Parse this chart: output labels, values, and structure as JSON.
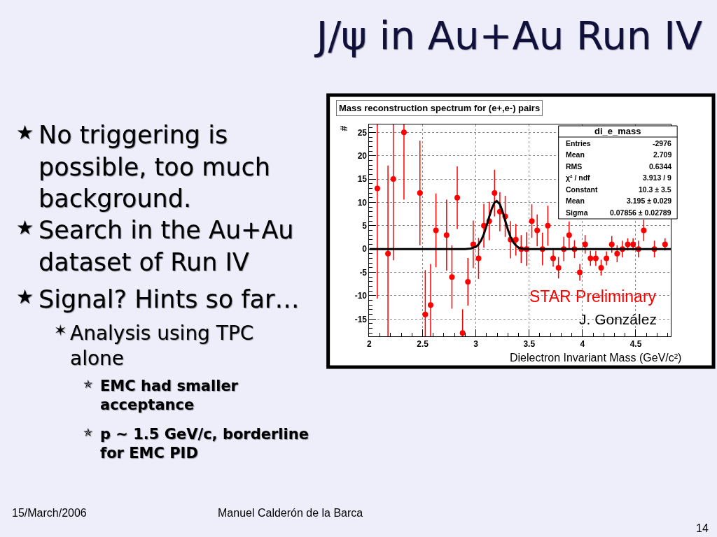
{
  "chart_data": {
    "type": "scatter",
    "title": "J/ψ in Au+Au Run IV",
    "subtitle": "Mass reconstruction spectrum for (e+,e-) pairs",
    "xlabel": "Dielectron Invariant Mass (GeV/c²)",
    "ylabel": "#",
    "xlim": [
      2,
      4.83
    ],
    "ylim": [
      -18.7,
      26.7
    ],
    "grid": true,
    "xticks": [
      2,
      {
        "value": 2.1,
        "label": null
      },
      {
        "value": 2.2,
        "label": null
      },
      {
        "value": 2.3,
        "label": null
      },
      {
        "value": 2.4,
        "label": null
      },
      2.5,
      {
        "value": 2.6,
        "label": null
      },
      {
        "value": 2.7,
        "label": null
      },
      {
        "value": 2.8,
        "label": null
      },
      {
        "value": 2.9,
        "label": null
      },
      3,
      {
        "value": 3.1,
        "label": null
      },
      {
        "value": 3.2,
        "label": null
      },
      {
        "value": 3.3,
        "label": null
      },
      {
        "value": 3.4,
        "label": null
      },
      3.5,
      {
        "value": 3.6,
        "label": null
      },
      {
        "value": 3.7,
        "label": null
      },
      {
        "value": 3.8,
        "label": null
      },
      {
        "value": 3.9,
        "label": null
      },
      4,
      {
        "value": 4.1,
        "label": null
      },
      {
        "value": 4.2,
        "label": null
      },
      {
        "value": 4.3,
        "label": null
      },
      {
        "value": 4.4,
        "label": null
      },
      4.5,
      {
        "value": 4.6,
        "label": null
      },
      {
        "value": 4.7,
        "label": null
      },
      {
        "value": 4.8,
        "label": null
      }
    ],
    "yticks": [
      {
        "value": -18,
        "label": null
      },
      {
        "value": -17,
        "label": null
      },
      {
        "value": -16,
        "label": null
      },
      -15,
      {
        "value": -14,
        "label": null
      },
      {
        "value": -13,
        "label": null
      },
      {
        "value": -12,
        "label": null
      },
      {
        "value": -11,
        "label": null
      },
      -10,
      {
        "value": -9,
        "label": null
      },
      {
        "value": -8,
        "label": null
      },
      {
        "value": -7,
        "label": null
      },
      {
        "value": -6,
        "label": null
      },
      -5,
      {
        "value": -4,
        "label": null
      },
      {
        "value": -3,
        "label": null
      },
      {
        "value": -2,
        "label": null
      },
      {
        "value": -1,
        "label": null
      },
      0,
      {
        "value": 1,
        "label": null
      },
      {
        "value": 2,
        "label": null
      },
      {
        "value": 3,
        "label": null
      },
      {
        "value": 4,
        "label": null
      },
      5,
      {
        "value": 6,
        "label": null
      },
      {
        "value": 7,
        "label": null
      },
      {
        "value": 8,
        "label": null
      },
      {
        "value": 9,
        "label": null
      },
      10,
      {
        "value": 11,
        "label": null
      },
      {
        "value": 12,
        "label": null
      },
      {
        "value": 13,
        "label": null
      },
      {
        "value": 14,
        "label": null
      },
      15,
      {
        "value": 16,
        "label": null
      },
      {
        "value": 17,
        "label": null
      },
      {
        "value": 18,
        "label": null
      },
      {
        "value": 19,
        "label": null
      },
      20,
      {
        "value": 21,
        "label": null
      },
      {
        "value": 22,
        "label": null
      },
      {
        "value": 23,
        "label": null
      },
      {
        "value": 24,
        "label": null
      },
      25,
      {
        "value": 26,
        "label": null
      }
    ],
    "series": [
      {
        "color": "#ff0000",
        "marker": "circle",
        "x": [
          2.075,
          2.175,
          2.225,
          2.325,
          2.475,
          2.525,
          2.575,
          2.625,
          2.725,
          2.775,
          2.825,
          2.875,
          2.925,
          2.975,
          3.025,
          3.075,
          3.125,
          3.175,
          3.225,
          3.275,
          3.325,
          3.375,
          3.425,
          3.475,
          3.525,
          3.575,
          3.625,
          3.675,
          3.725,
          3.775,
          3.825,
          3.875,
          3.925,
          3.975,
          4.025,
          4.075,
          4.125,
          4.175,
          4.225,
          4.275,
          4.325,
          4.375,
          4.425,
          4.475,
          4.525,
          4.575,
          4.675,
          4.775
        ],
        "values": [
          13,
          -1,
          15,
          25,
          12,
          -14,
          -12,
          4,
          3,
          -6,
          11,
          -18,
          -7,
          1,
          -2,
          5,
          6,
          12,
          8,
          7,
          2,
          2,
          0,
          0,
          6,
          4,
          0,
          5,
          -2,
          -4,
          0,
          3,
          0,
          -5,
          1,
          -2,
          -2,
          -4,
          -2,
          1,
          -1,
          0,
          1,
          1,
          0,
          4,
          0,
          1
        ],
        "errors": [
          [
            -10.6,
            26.7
          ],
          [
            -18.7,
            17.9
          ],
          [
            -2.4,
            26.7
          ],
          [
            10.6,
            26.7
          ],
          11.2,
          [
            -18.7,
            -4.5
          ],
          [
            -18.7,
            -3.2
          ],
          7.9,
          7.6,
          6.8,
          6.7,
          [
            -18.7,
            -12.9
          ],
          5.1,
          5.1,
          4.4,
          4.7,
          4.1,
          5,
          4.2,
          4.4,
          4,
          3.4,
          3,
          3.6,
          3.6,
          3.4,
          3.5,
          4.3,
          1.8,
          2.3,
          2.6,
          2.9,
          1.9,
          1.8,
          2,
          1.6,
          1.6,
          1.7,
          1.5,
          1.8,
          1.8,
          1.8,
          1.3,
          1.3,
          1.8,
          2.3,
          1.8,
          1.3
        ]
      },
      {
        "type": "line",
        "color": "#000000",
        "x": [
          2,
          2.9,
          2.95,
          3.0,
          3.025,
          3.05,
          3.075,
          3.1,
          3.125,
          3.15,
          3.175,
          3.195,
          3.225,
          3.25,
          3.275,
          3.3,
          3.325,
          3.35,
          3.375,
          3.4,
          3.425,
          3.45,
          3.5,
          4.83
        ],
        "values": [
          0,
          0,
          0.1,
          0.5,
          1.0,
          1.9,
          3.2,
          5.0,
          6.9,
          8.7,
          10.0,
          10.3,
          9.6,
          8.1,
          6.1,
          4.2,
          2.6,
          1.5,
          0.8,
          0.3,
          0.1,
          0,
          0,
          0
        ]
      }
    ],
    "annotations": [
      "★ No triggering is\npossible, too much\nbackground.",
      "★ Search in the Au+Au\ndataset of Run IV",
      "★ Signal? Hints so far…",
      "✶ Analysis using TPC\nalone",
      "✯ EMC had smaller\nacceptance",
      "✯ p ~ 1.5 GeV/c, borderline\nfor EMC PID",
      "di_e_mass",
      "Entries",
      "-2976",
      "Mean",
      "2.709",
      "RMS",
      "0.6344",
      "χ² / ndf",
      "3.913 / 9",
      "Constant",
      "10.3 ± 3.5",
      "Mean",
      "3.195 ± 0.029",
      "Sigma",
      "0.07856 ± 0.02789",
      "STAR Preliminary",
      "J. González",
      "15/March/2006",
      "Manuel Calderón de la Barca",
      "14"
    ]
  }
}
